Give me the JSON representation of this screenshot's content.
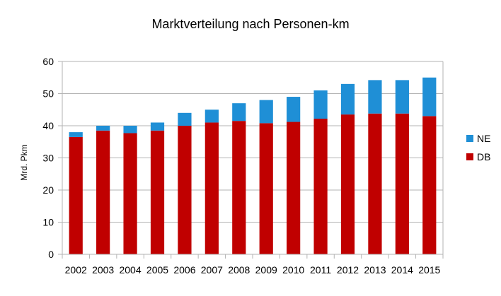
{
  "chart_data": {
    "type": "bar",
    "stacked": true,
    "title": "Marktverteilung nach Personen-km",
    "xlabel": "",
    "ylabel": "Mrd. Pkm",
    "ylim": [
      0,
      60
    ],
    "yticks": [
      0,
      10,
      20,
      30,
      40,
      50,
      60
    ],
    "grid": true,
    "legend_position": "right",
    "categories": [
      "2002",
      "2003",
      "2004",
      "2005",
      "2006",
      "2007",
      "2008",
      "2009",
      "2010",
      "2011",
      "2012",
      "2013",
      "2014",
      "2015"
    ],
    "series": [
      {
        "name": "DB",
        "color": "#c00000",
        "values": [
          36.5,
          38.5,
          37.7,
          38.5,
          40.0,
          41.0,
          41.5,
          40.8,
          41.2,
          42.2,
          43.5,
          43.8,
          43.8,
          43.0
        ]
      },
      {
        "name": "NE",
        "color": "#1f8fd6",
        "values": [
          1.5,
          1.5,
          2.3,
          2.5,
          4.0,
          4.0,
          5.5,
          7.2,
          7.8,
          8.8,
          9.5,
          10.4,
          10.4,
          12.0
        ]
      }
    ]
  }
}
